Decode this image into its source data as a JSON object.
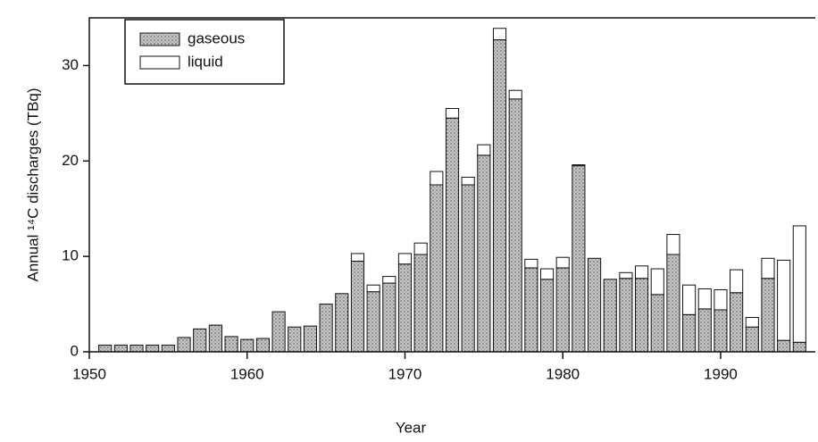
{
  "chart_data": {
    "type": "stacked_bar",
    "xlabel": "Year",
    "ylabel": "Annual ¹⁴C discharges (TBq)",
    "x": [
      1951,
      1952,
      1953,
      1954,
      1955,
      1956,
      1957,
      1958,
      1959,
      1960,
      1961,
      1962,
      1963,
      1964,
      1965,
      1966,
      1967,
      1968,
      1969,
      1970,
      1971,
      1972,
      1973,
      1974,
      1975,
      1976,
      1977,
      1978,
      1979,
      1980,
      1981,
      1982,
      1983,
      1984,
      1985,
      1986,
      1987,
      1988,
      1989,
      1990,
      1991,
      1992,
      1993,
      1994,
      1995
    ],
    "series": [
      {
        "name": "gaseous",
        "color": "#a8a8a8",
        "values": [
          0.7,
          0.7,
          0.7,
          0.7,
          0.7,
          1.5,
          2.4,
          2.8,
          1.6,
          1.3,
          1.4,
          4.2,
          2.6,
          2.7,
          5.0,
          6.1,
          9.5,
          6.3,
          7.2,
          9.2,
          10.2,
          17.5,
          24.5,
          17.5,
          20.6,
          32.7,
          26.5,
          8.8,
          7.6,
          8.8,
          19.5,
          9.8,
          7.6,
          7.7,
          7.7,
          6.0,
          10.2,
          3.9,
          4.5,
          4.4,
          6.2,
          2.6,
          7.7,
          1.2,
          1.0
        ]
      },
      {
        "name": "liquid",
        "color": "#ffffff",
        "values": [
          0,
          0,
          0,
          0,
          0,
          0,
          0,
          0,
          0,
          0,
          0,
          0,
          0,
          0,
          0,
          0,
          0.8,
          0.7,
          0.7,
          1.1,
          1.2,
          1.4,
          1.0,
          0.8,
          1.1,
          1.2,
          0.9,
          0.9,
          1.1,
          1.1,
          0.1,
          0,
          0,
          0.6,
          1.3,
          2.7,
          2.1,
          3.1,
          2.1,
          2.1,
          2.4,
          1.0,
          2.1,
          8.4,
          12.2
        ]
      }
    ],
    "xlim": [
      1950,
      1996
    ],
    "xticks": [
      1950,
      1960,
      1970,
      1980,
      1990
    ],
    "ylim": [
      0,
      35
    ],
    "yticks": [
      0,
      10,
      20,
      30
    ],
    "legend": "upper left"
  }
}
